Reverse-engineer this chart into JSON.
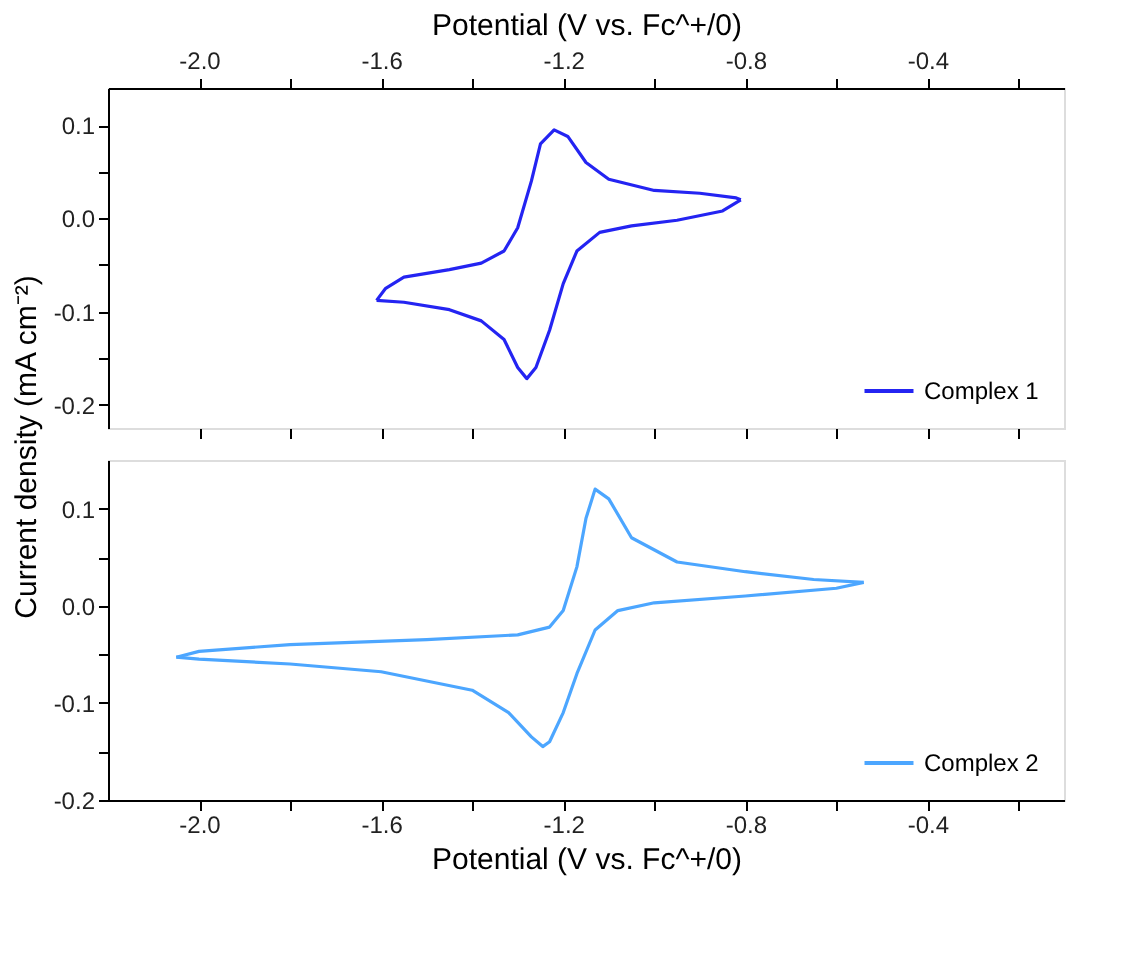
{
  "chart_data": [
    {
      "type": "line",
      "xlabel": "Potential (V vs. Fc^+/0)",
      "xlim": [
        -2.2,
        -0.1
      ],
      "xticks": [
        {
          "value": -2.0,
          "label": "-2.0"
        },
        {
          "value": -1.8,
          "label": null
        },
        -1.6,
        {
          "value": -1.4,
          "label": null
        },
        -1.2,
        {
          "value": -1.0,
          "label": null
        },
        -0.8,
        {
          "value": -0.6,
          "label": null
        },
        -0.4,
        {
          "value": -0.2,
          "label": null
        }
      ],
      "ylim": [
        -0.225,
        0.14
      ],
      "yticks": [
        0.1,
        {
          "value": 0.05,
          "label": null
        },
        {
          "value": 0.0,
          "label": "0.0"
        },
        {
          "value": -0.05,
          "label": null
        },
        -0.1,
        {
          "value": -0.15,
          "label": null
        },
        -0.2
      ],
      "legend": "bottom right",
      "grid": false,
      "marker": "none",
      "series": [
        {
          "name": "Complex 1",
          "color": "#2424f2",
          "x": [
            -0.81,
            -0.85,
            -0.95,
            -1.05,
            -1.12,
            -1.17,
            -1.2,
            -1.23,
            -1.26,
            -1.28,
            -1.3,
            -1.33,
            -1.38,
            -1.45,
            -1.55,
            -1.61
          ],
          "values": [
            0.02,
            0.008,
            -0.002,
            -0.008,
            -0.015,
            -0.035,
            -0.07,
            -0.12,
            -0.16,
            -0.172,
            -0.16,
            -0.13,
            -0.11,
            -0.098,
            -0.09,
            -0.088
          ]
        },
        {
          "color": "#2424f2",
          "x": [
            -1.61,
            -1.59,
            -1.55,
            -1.45,
            -1.38,
            -1.33,
            -1.3,
            -1.27,
            -1.25,
            -1.22,
            -1.19,
            -1.15,
            -1.1,
            -1.0,
            -0.9,
            -0.82,
            -0.81
          ],
          "values": [
            -0.088,
            -0.075,
            -0.063,
            -0.055,
            -0.048,
            -0.035,
            -0.01,
            0.04,
            0.08,
            0.095,
            0.088,
            0.06,
            0.042,
            0.03,
            0.027,
            0.022,
            0.02
          ]
        }
      ]
    },
    {
      "type": "line",
      "xlabel": "Potential (V vs. Fc^+/0)",
      "ylabel": "Current density (mA cm⁻²)",
      "xlim": [
        -2.2,
        -0.1
      ],
      "xticks": [
        {
          "value": -2.0,
          "label": "-2.0"
        },
        {
          "value": -1.8,
          "label": null
        },
        -1.6,
        {
          "value": -1.4,
          "label": null
        },
        -1.2,
        {
          "value": -1.0,
          "label": null
        },
        -0.8,
        {
          "value": -0.6,
          "label": null
        },
        -0.4,
        {
          "value": -0.2,
          "label": null
        }
      ],
      "ylim": [
        -0.2,
        0.15
      ],
      "yticks": [
        0.1,
        {
          "value": 0.05,
          "label": null
        },
        {
          "value": 0.0,
          "label": "0.0"
        },
        {
          "value": -0.05,
          "label": null
        },
        -0.1,
        {
          "value": -0.15,
          "label": null
        },
        -0.2
      ],
      "legend": "bottom right",
      "grid": false,
      "marker": "none",
      "series": [
        {
          "name": "Complex 2",
          "color": "#4ca6ff",
          "x": [
            -0.54,
            -0.6,
            -0.8,
            -1.0,
            -1.08,
            -1.13,
            -1.17,
            -1.2,
            -1.23,
            -1.245,
            -1.27,
            -1.32,
            -1.4,
            -1.6,
            -1.8,
            -2.0,
            -2.05
          ],
          "values": [
            0.024,
            0.018,
            0.01,
            0.003,
            -0.005,
            -0.025,
            -0.07,
            -0.11,
            -0.14,
            -0.145,
            -0.135,
            -0.11,
            -0.087,
            -0.068,
            -0.06,
            -0.055,
            -0.053
          ]
        },
        {
          "color": "#4ca6ff",
          "x": [
            -2.05,
            -2.0,
            -1.8,
            -1.5,
            -1.3,
            -1.23,
            -1.2,
            -1.17,
            -1.15,
            -1.13,
            -1.1,
            -1.05,
            -0.95,
            -0.8,
            -0.65,
            -0.54
          ],
          "values": [
            -0.053,
            -0.047,
            -0.04,
            -0.035,
            -0.03,
            -0.022,
            -0.005,
            0.04,
            0.09,
            0.12,
            0.11,
            0.07,
            0.045,
            0.035,
            0.027,
            0.024
          ]
        }
      ]
    }
  ]
}
